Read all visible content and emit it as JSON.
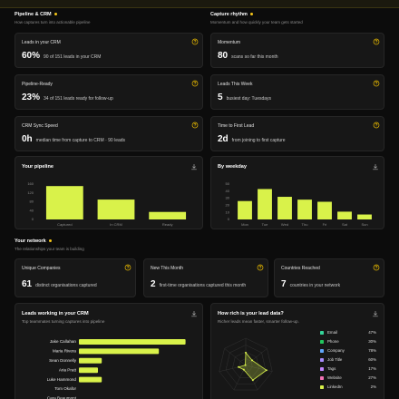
{
  "sections": [
    {
      "title": "Pipeline & CRM",
      "subtitle": "How captures turn into actionable pipeline"
    },
    {
      "title": "Capture rhythm",
      "subtitle": "Momentum and how quickly your team gets started"
    },
    {
      "title": "Your network",
      "subtitle": "The relationships your team is building"
    }
  ],
  "pipeline_cards": [
    {
      "title": "Leads in your CRM",
      "value": "60%",
      "detail": "90 of 151 leads in your CRM"
    },
    {
      "title": "Pipeline-Ready",
      "value": "23%",
      "detail": "34 of 151 leads ready for follow-up"
    },
    {
      "title": "CRM Sync Speed",
      "value": "0h",
      "detail": "median time from capture to CRM · 90 leads"
    }
  ],
  "rhythm_cards": [
    {
      "title": "Momentum",
      "value": "80",
      "detail": "scans so far this month"
    },
    {
      "title": "Leads This Week",
      "value": "5",
      "detail": "busiest day: Tuesdays"
    },
    {
      "title": "Time to First Lead",
      "value": "2d",
      "detail": "from joining to first capture"
    }
  ],
  "network_cards": [
    {
      "title": "Unique Companies",
      "value": "61",
      "detail": "distinct organisations captured"
    },
    {
      "title": "New This Month",
      "value": "2",
      "detail": "first-time organisations captured this month"
    },
    {
      "title": "Countries Reached",
      "value": "7",
      "detail": "countries in your network"
    }
  ],
  "chart_data": [
    {
      "type": "bar",
      "title": "Your pipeline",
      "categories": [
        "Captured",
        "In CRM",
        "Ready"
      ],
      "values": [
        151,
        90,
        34
      ],
      "color": "#d9f24a",
      "ylim": [
        0,
        160
      ],
      "yticks": [
        0,
        40,
        80,
        120,
        160
      ]
    },
    {
      "type": "bar",
      "title": "By weekday",
      "categories": [
        "Mon",
        "Tue",
        "Wed",
        "Thu",
        "Fri",
        "Sat",
        "Sun"
      ],
      "values": [
        26,
        43,
        32,
        28,
        25,
        11,
        7
      ],
      "color": "#d9f24a",
      "ylim": [
        0,
        50
      ],
      "yticks": [
        0,
        10,
        20,
        30,
        40,
        50
      ]
    },
    {
      "type": "hbar",
      "title": "Leads working in your CRM",
      "subtitle": "Top teammates turning captures into pipeline",
      "categories": [
        "Jake Callahan",
        "Maria Rivera",
        "Sean Donnelly",
        "Aria Pratt",
        "Luke Hammond",
        "Tom Okafor",
        "Cara Beaumont"
      ],
      "values": [
        28,
        21,
        6,
        5,
        6,
        0,
        0
      ],
      "color": "#d9f24a",
      "xlim": [
        0,
        30
      ]
    },
    {
      "type": "radar",
      "title": "How rich is your lead data?",
      "subtitle": "Richer leads mean faster, smarter follow-up.",
      "categories": [
        "Email",
        "Phone",
        "Company",
        "Job Title",
        "Tags",
        "Website",
        "LinkedIn"
      ],
      "values": [
        47,
        30,
        78,
        60,
        17,
        27,
        2
      ],
      "value_labels": [
        "47%",
        "30%",
        "78%",
        "60%",
        "17%",
        "27%",
        "2%"
      ],
      "colors": [
        "#34d399",
        "#22c55e",
        "#60a5fa",
        "#a78bfa",
        "#c084fc",
        "#f472b6",
        "#d9f24a"
      ],
      "color": "#d9f24a",
      "rlim": [
        0,
        100
      ]
    }
  ]
}
